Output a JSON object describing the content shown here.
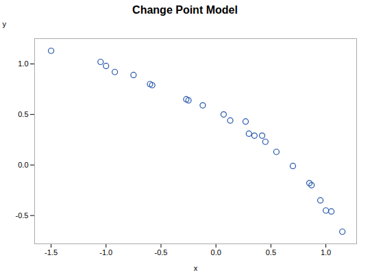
{
  "chart_data": {
    "type": "scatter",
    "title": "Change Point Model",
    "xlabel": "x",
    "ylabel": "y",
    "x": [
      -1.5,
      -1.05,
      -1.0,
      -0.92,
      -0.75,
      -0.6,
      -0.58,
      -0.27,
      -0.25,
      -0.12,
      0.07,
      0.13,
      0.27,
      0.3,
      0.35,
      0.42,
      0.45,
      0.55,
      0.7,
      0.85,
      0.87,
      0.95,
      1.0,
      1.05,
      1.15
    ],
    "y": [
      1.13,
      1.02,
      0.98,
      0.92,
      0.89,
      0.8,
      0.79,
      0.65,
      0.64,
      0.59,
      0.5,
      0.44,
      0.43,
      0.31,
      0.29,
      0.29,
      0.23,
      0.13,
      -0.01,
      -0.18,
      -0.2,
      -0.35,
      -0.45,
      -0.46,
      -0.66
    ],
    "xlim": [
      -1.65,
      1.28
    ],
    "ylim": [
      -0.78,
      1.25
    ],
    "xticks": [
      -1.5,
      {
        "value": -1,
        "label": "-1.0"
      },
      -0.5,
      {
        "value": 0,
        "label": "0.0"
      },
      0.5,
      {
        "value": 1,
        "label": "1.0"
      }
    ],
    "yticks": [
      -0.5,
      {
        "value": 0,
        "label": "0.0"
      },
      0.5,
      {
        "value": 1,
        "label": "1.0"
      }
    ],
    "color": "#2255aa",
    "marker": "circle",
    "grid": false
  }
}
